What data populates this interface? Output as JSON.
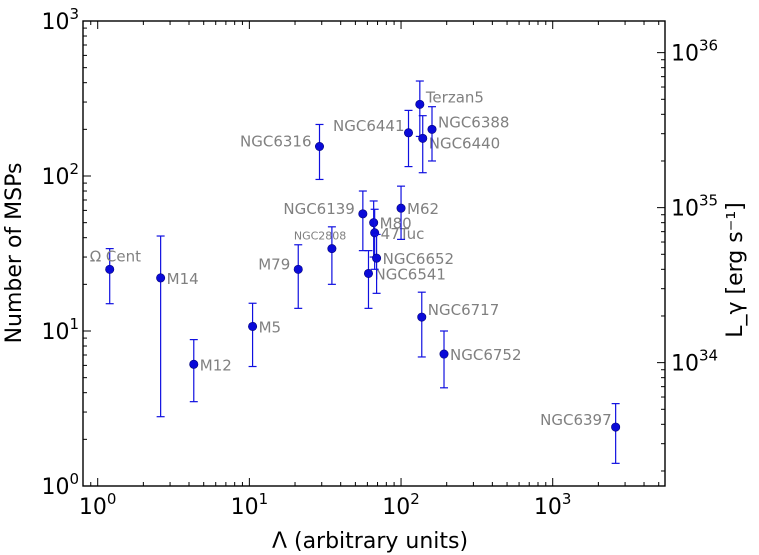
{
  "chart_data": {
    "type": "scatter",
    "title": "",
    "xlabel": "Λ (arbitrary units)",
    "ylabel": "Number of MSPs",
    "y2label": "L_γ [erg s⁻¹]",
    "xscale": "log",
    "yscale": "log",
    "xlim": [
      0.8,
      5500
    ],
    "ylim": [
      1.0,
      1000
    ],
    "y2lim": [
      1.6e+33,
      1.6e+36
    ],
    "x_ticks": [
      {
        "base": "10",
        "exp": "0",
        "value": 1
      },
      {
        "base": "10",
        "exp": "1",
        "value": 10
      },
      {
        "base": "10",
        "exp": "2",
        "value": 100
      },
      {
        "base": "10",
        "exp": "3",
        "value": 1000
      }
    ],
    "y_ticks": [
      {
        "base": "10",
        "exp": "0",
        "value": 1
      },
      {
        "base": "10",
        "exp": "1",
        "value": 10
      },
      {
        "base": "10",
        "exp": "2",
        "value": 100
      },
      {
        "base": "10",
        "exp": "3",
        "value": 1000
      }
    ],
    "y2_ticks": [
      {
        "base": "10",
        "exp": "34",
        "value": 1e+34
      },
      {
        "base": "10",
        "exp": "35",
        "value": 1e+35
      },
      {
        "base": "10",
        "exp": "36",
        "value": 1e+36
      }
    ],
    "points": [
      {
        "label": "Ω Cent",
        "x": 1.2,
        "y": 25,
        "ylo": 15,
        "yhi": 34,
        "pos": "above-left"
      },
      {
        "label": "M14",
        "x": 2.6,
        "y": 22,
        "ylo": 2.8,
        "yhi": 41,
        "pos": "right"
      },
      {
        "label": "M12",
        "x": 4.3,
        "y": 6.1,
        "ylo": 3.5,
        "yhi": 8.8,
        "pos": "right"
      },
      {
        "label": "M5",
        "x": 10.5,
        "y": 10.7,
        "ylo": 5.9,
        "yhi": 15.1,
        "pos": "right"
      },
      {
        "label": "M79",
        "x": 21,
        "y": 25,
        "ylo": 14,
        "yhi": 36,
        "pos": "left"
      },
      {
        "label": "NGC2808",
        "x": 35,
        "y": 34,
        "ylo": 20,
        "yhi": 47,
        "pos": "above-left-small"
      },
      {
        "label": "NGC6316",
        "x": 29,
        "y": 155,
        "ylo": 95,
        "yhi": 215,
        "pos": "left"
      },
      {
        "label": "NGC6139",
        "x": 56,
        "y": 57,
        "ylo": 33,
        "yhi": 80,
        "pos": "left"
      },
      {
        "label": "NGC6541",
        "x": 61,
        "y": 23.5,
        "ylo": 14,
        "yhi": 33,
        "pos": "right"
      },
      {
        "label": "M80",
        "x": 66,
        "y": 50,
        "ylo": 30,
        "yhi": 69,
        "pos": "right"
      },
      {
        "label": "47Tuc",
        "x": 67,
        "y": 43,
        "ylo": 25,
        "yhi": 61,
        "pos": "right"
      },
      {
        "label": "NGC6652",
        "x": 69,
        "y": 29.5,
        "ylo": 17.5,
        "yhi": 42,
        "pos": "right"
      },
      {
        "label": "M62",
        "x": 100,
        "y": 62,
        "ylo": 39,
        "yhi": 86,
        "pos": "right"
      },
      {
        "label": "NGC6441",
        "x": 112,
        "y": 190,
        "ylo": 115,
        "yhi": 265,
        "pos": "left-up"
      },
      {
        "label": "Terzan5",
        "x": 133,
        "y": 290,
        "ylo": 180,
        "yhi": 410,
        "pos": "right-up"
      },
      {
        "label": "NGC6440",
        "x": 139,
        "y": 175,
        "ylo": 105,
        "yhi": 245,
        "pos": "right-down"
      },
      {
        "label": "NGC6388",
        "x": 160,
        "y": 200,
        "ylo": 125,
        "yhi": 280,
        "pos": "right-up"
      },
      {
        "label": "NGC6717",
        "x": 137,
        "y": 12.3,
        "ylo": 6.8,
        "yhi": 17.8,
        "pos": "right-up"
      },
      {
        "label": "NGC6752",
        "x": 192,
        "y": 7.1,
        "ylo": 4.3,
        "yhi": 10,
        "pos": "right"
      },
      {
        "label": "NGC6397",
        "x": 2600,
        "y": 2.4,
        "ylo": 1.4,
        "yhi": 3.4,
        "pos": "left-up"
      }
    ]
  }
}
